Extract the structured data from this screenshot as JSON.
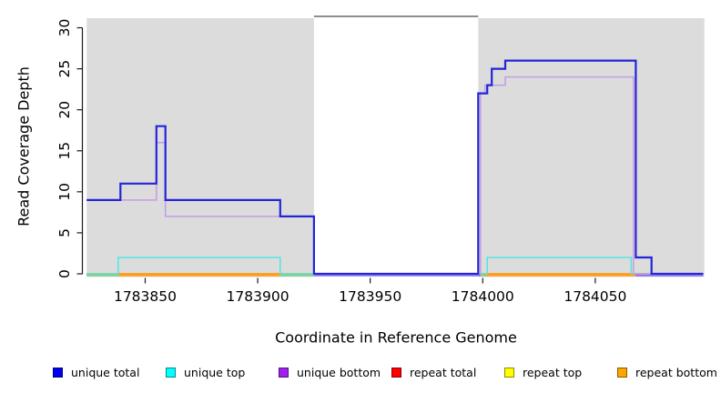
{
  "chart_data": {
    "type": "line",
    "subtype": "step-coverage-plot",
    "title": "",
    "xlabel": "Coordinate in Reference Genome",
    "ylabel": "Read Coverage Depth",
    "xlim": [
      1783824,
      1784099
    ],
    "ylim": [
      0,
      31.5
    ],
    "x_ticks": [
      1783850,
      1783900,
      1783950,
      1784000,
      1784050
    ],
    "y_ticks": [
      0,
      5,
      10,
      15,
      20,
      25,
      30
    ],
    "grid": false,
    "legend_position": "bottom",
    "shaded_regions": [
      {
        "x1": 1783824,
        "x2": 1783925,
        "color": "#dcdcdc"
      },
      {
        "x1": 1783998,
        "x2": 1784098.5,
        "color": "#dcdcdc"
      }
    ],
    "gap_top_line": {
      "x1": 1783925,
      "x2": 1783998,
      "color": "#8f8f8f"
    },
    "series": [
      {
        "name": "repeat total",
        "legend_color": "#ff0000",
        "line_color": "#ff0000",
        "points": [
          [
            1783824,
            0
          ],
          [
            1784098,
            0
          ]
        ]
      },
      {
        "name": "repeat top",
        "legend_color": "#ffff00",
        "line_color": "#ffff00",
        "points": [
          [
            1783824,
            0
          ],
          [
            1784098,
            0
          ]
        ]
      },
      {
        "name": "repeat bottom",
        "legend_color": "#ffa500",
        "line_color": "#ff9d1c",
        "points": [
          [
            1783824,
            0
          ],
          [
            1784098,
            0
          ]
        ]
      },
      {
        "name": "unique top",
        "legend_color": "#00ffff",
        "line_color": "#55e6e2",
        "points": [
          [
            1783824,
            0
          ],
          [
            1783838,
            2
          ],
          [
            1783910,
            0
          ],
          [
            1784002,
            2
          ],
          [
            1784066,
            0
          ],
          [
            1784098,
            0
          ]
        ]
      },
      {
        "name": "unique bottom",
        "legend_color": "#a020f0",
        "line_color": "#c79ae6",
        "points": [
          [
            1783824,
            9
          ],
          [
            1783855,
            16
          ],
          [
            1783859,
            7
          ],
          [
            1783925,
            0
          ],
          [
            1783999,
            22
          ],
          [
            1784001,
            23
          ],
          [
            1784010,
            24
          ],
          [
            1784067,
            0
          ],
          [
            1784098,
            0
          ]
        ]
      },
      {
        "name": "unique total",
        "legend_color": "#0000f0",
        "line_color": "#2424d9",
        "points": [
          [
            1783824,
            9
          ],
          [
            1783839,
            11
          ],
          [
            1783855,
            18
          ],
          [
            1783859,
            9
          ],
          [
            1783910,
            7
          ],
          [
            1783925,
            0
          ],
          [
            1783998,
            22
          ],
          [
            1784002,
            23
          ],
          [
            1784004,
            25
          ],
          [
            1784010,
            26
          ],
          [
            1784068,
            2
          ],
          [
            1784075,
            0
          ],
          [
            1784098,
            0
          ]
        ]
      }
    ],
    "baseline_overlap_segments": [
      {
        "x1": 1783824,
        "x2": 1783838,
        "color": "#7ccf96"
      },
      {
        "x1": 1783838,
        "x2": 1783910,
        "color": "#ff9d1c"
      },
      {
        "x1": 1783910,
        "x2": 1783925,
        "color": "#7ccf96"
      },
      {
        "x1": 1783925,
        "x2": 1783999,
        "color": "#8372ea"
      },
      {
        "x1": 1783999,
        "x2": 1784001,
        "color": "#7ccf96"
      },
      {
        "x1": 1784001,
        "x2": 1784068,
        "color": "#ff9d1c"
      },
      {
        "x1": 1784068,
        "x2": 1784098,
        "color": "#8372ea"
      }
    ],
    "legend": [
      {
        "label": "unique total",
        "color": "#0000f0"
      },
      {
        "label": "unique top",
        "color": "#00ffff"
      },
      {
        "label": "unique bottom",
        "color": "#a020f0"
      },
      {
        "label": "repeat total",
        "color": "#ff0000"
      },
      {
        "label": "repeat top",
        "color": "#ffff00"
      },
      {
        "label": "repeat bottom",
        "color": "#ffa500"
      }
    ]
  }
}
